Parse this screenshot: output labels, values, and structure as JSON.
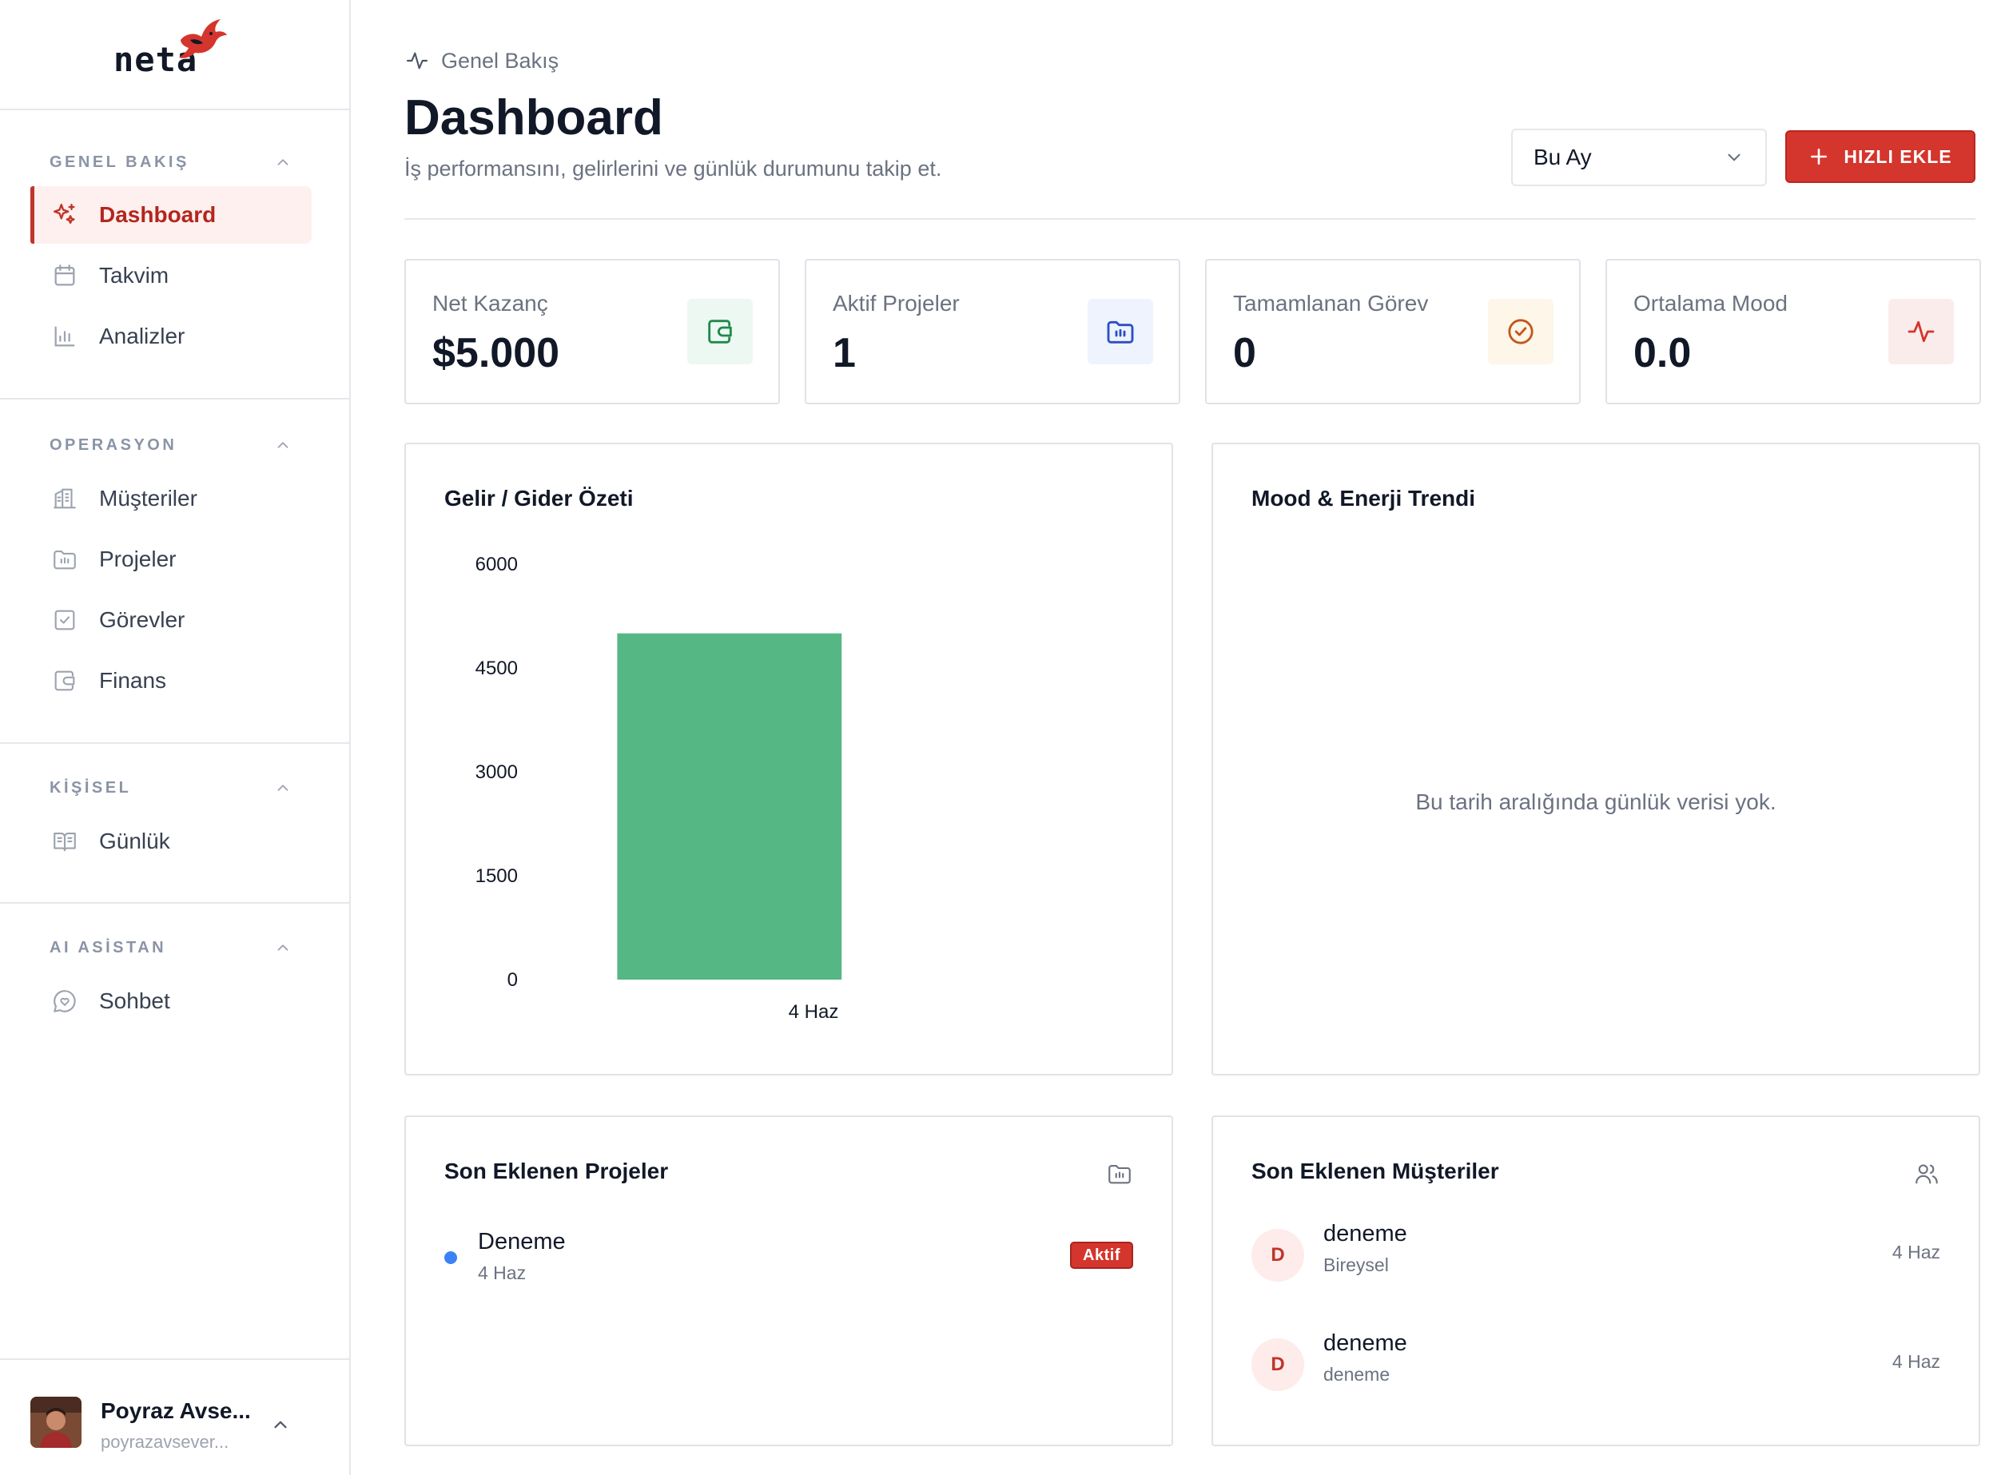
{
  "app": {
    "logo_text": "neta",
    "accent": "#d4352c"
  },
  "sidebar": {
    "sections": [
      {
        "title": "GENEL BAKIŞ",
        "items": [
          {
            "label": "Dashboard",
            "icon": "sparkle-icon",
            "active": true
          },
          {
            "label": "Takvim",
            "icon": "calendar-icon"
          },
          {
            "label": "Analizler",
            "icon": "bar-chart-icon"
          }
        ]
      },
      {
        "title": "OPERASYON",
        "items": [
          {
            "label": "Müşteriler",
            "icon": "building-icon"
          },
          {
            "label": "Projeler",
            "icon": "folder-icon"
          },
          {
            "label": "Görevler",
            "icon": "checkbox-icon"
          },
          {
            "label": "Finans",
            "icon": "wallet-icon"
          }
        ]
      },
      {
        "title": "KİŞİSEL",
        "items": [
          {
            "label": "Günlük",
            "icon": "book-icon"
          }
        ]
      },
      {
        "title": "AI ASİSTAN",
        "items": [
          {
            "label": "Sohbet",
            "icon": "chat-heart-icon"
          }
        ]
      }
    ],
    "user": {
      "name": "Poyraz Avse...",
      "email": "poyrazavsever..."
    }
  },
  "header": {
    "breadcrumb": "Genel Bakış",
    "title": "Dashboard",
    "subtitle": "İş performansını, gelirlerini ve günlük durumunu takip et.",
    "period": "Bu Ay",
    "quick_add": "HIZLI EKLE"
  },
  "stats": [
    {
      "label": "Net Kazanç",
      "value": "$5.000",
      "icon": "wallet-icon",
      "color": "#1f8a4c",
      "bg": "#ecf8f1"
    },
    {
      "label": "Aktif Projeler",
      "value": "1",
      "icon": "folder-icon",
      "color": "#2b4fc7",
      "bg": "#eef3fd"
    },
    {
      "label": "Tamamlanan Görev",
      "value": "0",
      "icon": "check-circle-icon",
      "color": "#c2571a",
      "bg": "#fdf6e9"
    },
    {
      "label": "Ortalama Mood",
      "value": "0.0",
      "icon": "activity-icon",
      "color": "#d4352c",
      "bg": "#fbecec"
    }
  ],
  "income_card": {
    "title": "Gelir / Gider Özeti"
  },
  "chart_data": {
    "type": "bar",
    "title": "Gelir / Gider Özeti",
    "categories": [
      "4 Haz"
    ],
    "series": [
      {
        "values": [
          5000
        ],
        "color": "#55b784"
      }
    ],
    "yticks": [
      "6000",
      "4500",
      "3000",
      "1500",
      "0"
    ],
    "ylim": [
      0,
      6000
    ],
    "grid": false
  },
  "mood_card": {
    "title": "Mood & Enerji Trendi",
    "empty": "Bu tarih aralığında günlük verisi yok."
  },
  "projects_card": {
    "title": "Son Eklenen Projeler",
    "items": [
      {
        "name": "Deneme",
        "date": "4 Haz",
        "status": "Aktif"
      }
    ]
  },
  "customers_card": {
    "title": "Son Eklenen Müşteriler",
    "items": [
      {
        "initial": "D",
        "name": "deneme",
        "type": "Bireysel",
        "date": "4 Haz"
      },
      {
        "initial": "D",
        "name": "deneme",
        "type": "deneme",
        "date": "4 Haz"
      }
    ]
  }
}
